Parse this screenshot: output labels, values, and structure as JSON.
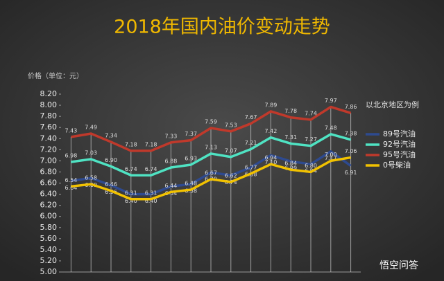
{
  "chart_data": {
    "type": "line",
    "title": "2018年国内油价变动走势",
    "y_label": "价格（单位：元）",
    "annotation": "以北京地区为例",
    "watermark": "悟空问答",
    "categories": [
      null,
      null,
      null,
      null,
      null,
      null,
      null,
      null,
      null,
      null,
      null,
      null,
      null,
      null,
      null
    ],
    "series": [
      {
        "name": "89号汽油",
        "color": "#2e4a8f",
        "values": [
          6.64,
          6.69,
          6.56,
          6.4,
          6.4,
          6.54,
          6.58,
          6.79,
          6.74,
          6.88,
          7.1,
          6.99,
          6.94,
          7.17,
          6.91
        ],
        "value_labels": [
          "6.64",
          "6.69",
          "6.56",
          "6.40",
          "6.40",
          "6.54",
          "6.58",
          "6.79",
          "6.74",
          "6.88",
          "7.10",
          "6.99",
          "6.94",
          "7.17",
          "6.91"
        ]
      },
      {
        "name": "92号汽油",
        "color": "#4fe3c3",
        "values": [
          6.98,
          7.03,
          6.9,
          6.74,
          6.74,
          6.88,
          6.93,
          7.13,
          7.07,
          7.21,
          7.42,
          7.31,
          7.27,
          7.48,
          7.38
        ],
        "value_labels": [
          "6.98",
          "7.03",
          "6.90",
          "6.74",
          "6.74",
          "6.88",
          "6.93",
          "7.13",
          "7.07",
          "7.21",
          "7.42",
          "7.31",
          "7.27",
          "7.48",
          "7.38"
        ]
      },
      {
        "name": "95号汽油",
        "color": "#c0392b",
        "values": [
          7.43,
          7.49,
          7.34,
          7.18,
          7.18,
          7.33,
          7.37,
          7.59,
          7.53,
          7.67,
          7.89,
          7.78,
          7.74,
          7.97,
          7.86
        ],
        "value_labels": [
          "7.43",
          "7.49",
          "7.34",
          "7.18",
          "7.18",
          "7.33",
          "7.37",
          "7.59",
          "7.53",
          "7.67",
          "7.89",
          "7.78",
          "7.74",
          "7.97",
          "7.86"
        ]
      },
      {
        "name": "0号柴油",
        "color": "#f2c200",
        "values": [
          6.54,
          6.58,
          6.46,
          6.31,
          6.31,
          6.44,
          6.48,
          6.67,
          6.62,
          6.77,
          6.94,
          6.84,
          6.8,
          7.0,
          7.06
        ],
        "value_labels": [
          "6.54",
          "6.58",
          "6.46",
          "6.31",
          "6.31",
          "6.44",
          "6.48",
          "6.67",
          "6.62",
          "6.77",
          "6.94",
          "6.84",
          "6.80",
          "7.00",
          "7.06"
        ]
      }
    ],
    "ylim": [
      5,
      8.2
    ],
    "yticks": [
      {
        "value": 5,
        "label": "5.00"
      },
      {
        "value": 5.2,
        "label": "5.20"
      },
      {
        "value": 5.4,
        "label": "5.40"
      },
      {
        "value": 5.6,
        "label": "5.60"
      },
      {
        "value": 5.8,
        "label": "5.80"
      },
      {
        "value": 6,
        "label": "6.00"
      },
      {
        "value": 6.2,
        "label": "6.20"
      },
      {
        "value": 6.4,
        "label": "6.40"
      },
      {
        "value": 6.6,
        "label": "6.60"
      },
      {
        "value": 6.8,
        "label": "6.80"
      },
      {
        "value": 7,
        "label": "7.00"
      },
      {
        "value": 7.2,
        "label": "7.20"
      },
      {
        "value": 7.4,
        "label": "7.40"
      },
      {
        "value": 7.6,
        "label": "7.60"
      },
      {
        "value": 7.8,
        "label": "7.80"
      },
      {
        "value": 8,
        "label": "8.00"
      },
      {
        "value": 8.2,
        "label": "8.20"
      }
    ]
  }
}
